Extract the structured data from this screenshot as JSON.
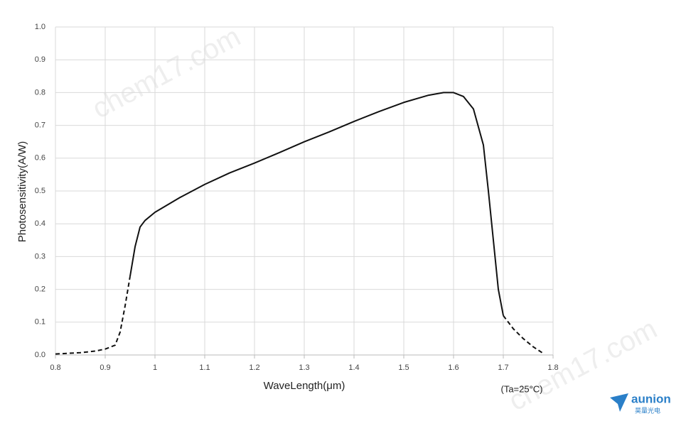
{
  "chart_data": {
    "type": "line",
    "ylabel": "Photosensitivity(A/W)",
    "xlabel": "WaveLength(μm)",
    "annotation": "(Ta=25°C)",
    "watermark": "chem17.com",
    "logo": {
      "name": "aunion",
      "subtitle": "昊量光电"
    },
    "xlim": [
      0.8,
      1.8
    ],
    "xticks": [
      0.8,
      0.9,
      1,
      1.1,
      1.2,
      1.3,
      1.4,
      1.5,
      1.6,
      1.7,
      1.8
    ],
    "ylim": [
      0,
      1
    ],
    "yticks": [
      {
        "value": 0,
        "label": "0.0"
      },
      0.1,
      0.2,
      0.3,
      0.4,
      0.5,
      0.6,
      0.7,
      0.8,
      0.9,
      {
        "value": 1,
        "label": "1.0"
      }
    ],
    "grid": true,
    "series": [
      {
        "color": "#111111",
        "dashed": true,
        "x": [
          0.8,
          0.85,
          0.88,
          0.9,
          0.92,
          0.93,
          0.94,
          0.95
        ],
        "values": [
          0.003,
          0.007,
          0.012,
          0.018,
          0.03,
          0.07,
          0.15,
          0.24
        ]
      },
      {
        "color": "#111111",
        "dashed": false,
        "x": [
          0.95,
          0.96,
          0.97,
          0.98,
          1.0,
          1.05,
          1.1,
          1.15,
          1.2,
          1.25,
          1.3,
          1.35,
          1.4,
          1.45,
          1.5,
          1.55,
          1.58,
          1.6,
          1.62,
          1.64,
          1.66,
          1.67,
          1.68,
          1.69,
          1.7
        ],
        "values": [
          0.24,
          0.33,
          0.39,
          0.41,
          0.435,
          0.48,
          0.52,
          0.555,
          0.585,
          0.617,
          0.65,
          0.68,
          0.712,
          0.742,
          0.77,
          0.792,
          0.8,
          0.8,
          0.788,
          0.75,
          0.64,
          0.5,
          0.35,
          0.2,
          0.12
        ]
      },
      {
        "color": "#111111",
        "dashed": true,
        "x": [
          1.7,
          1.72,
          1.74,
          1.76,
          1.78
        ],
        "values": [
          0.12,
          0.08,
          0.05,
          0.025,
          0.005
        ]
      }
    ]
  }
}
